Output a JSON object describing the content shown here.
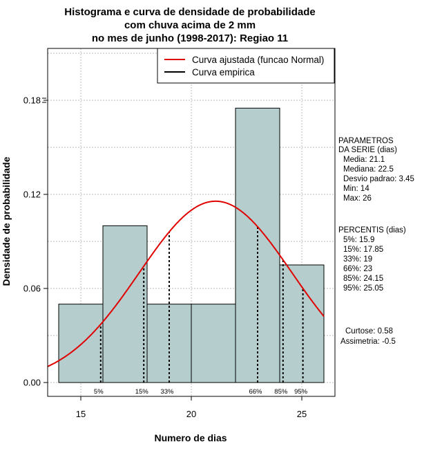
{
  "chart_data": {
    "type": "bar",
    "title": "Histograma e curva de densidade de probabilidade\ncom chuva acima de 2 mm\nno mes de junho (1998-2017): Regiao 11",
    "xlabel": "Numero de dias",
    "ylabel": "Densidade de probabilidade",
    "xlim": [
      13.5,
      26.5
    ],
    "ylim": [
      0,
      0.205
    ],
    "x_ticks": [
      15,
      20,
      25
    ],
    "x_tick_labels": [
      "15",
      "20",
      "25"
    ],
    "y_ticks": [
      0,
      0.06,
      0.12,
      0.18
    ],
    "y_tick_labels": [
      "0.00",
      "0.06",
      "0.12",
      "0.18"
    ],
    "grid": true,
    "bins": [
      {
        "x0": 14,
        "x1": 16,
        "density": 0.05
      },
      {
        "x0": 16,
        "x1": 18,
        "density": 0.1
      },
      {
        "x0": 18,
        "x1": 20,
        "density": 0.05
      },
      {
        "x0": 20,
        "x1": 22,
        "density": 0.05
      },
      {
        "x0": 22,
        "x1": 24,
        "density": 0.175
      },
      {
        "x0": 24,
        "x1": 26,
        "density": 0.075
      }
    ],
    "bar_color": "#b5cdcd",
    "series": [
      {
        "name": "Curva ajustada (funcao Normal)",
        "type": "line",
        "color": "#e00000",
        "mean": 21.1,
        "sd": 3.45
      },
      {
        "name": "Curva empirica",
        "type": "line",
        "color": "#000000"
      }
    ],
    "legend": {
      "position": "top-right"
    },
    "percentile_lines": [
      {
        "label": "5%",
        "x": 15.9
      },
      {
        "label": "15%",
        "x": 17.85
      },
      {
        "label": "33%",
        "x": 19
      },
      {
        "label": "66%",
        "x": 23
      },
      {
        "label": "85%",
        "x": 24.15
      },
      {
        "label": "95%",
        "x": 25.05
      }
    ]
  },
  "stats_panel": {
    "params_title": [
      "PARAMETROS",
      "DA SERIE (dias)"
    ],
    "params": [
      "Media: 21.1",
      "Mediana: 22.5",
      "Desvio padrao: 3.45",
      "Min: 14",
      "Max: 26"
    ],
    "percentis_title": "PERCENTIS (dias)",
    "percentis": [
      "5%: 15.9",
      "15%: 17.85",
      "33%: 19",
      "66%: 23",
      "85%: 24.15",
      "95%: 25.05"
    ],
    "curtose": "Curtose: 0.58",
    "assimetria": "Assimetria: -0.5"
  }
}
